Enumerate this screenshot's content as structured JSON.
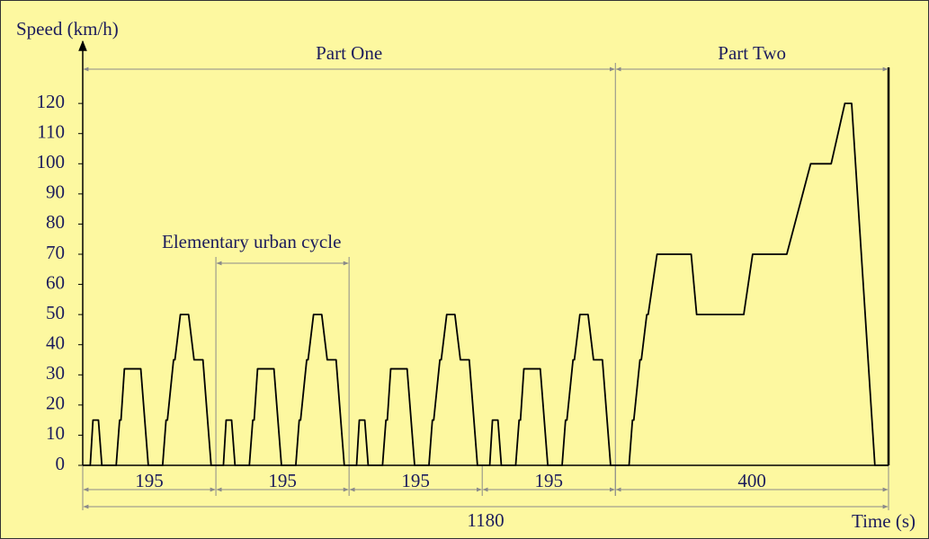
{
  "chart_data": {
    "type": "line",
    "y_label": "Speed (km/h)",
    "x_label": "Time (s)",
    "parts": [
      "Part One",
      "Part Two"
    ],
    "cycle_label": "Elementary urban cycle",
    "spans": [
      195,
      195,
      195,
      195,
      400
    ],
    "total": 1180,
    "color": "#000000",
    "xlim": [
      0,
      1180
    ],
    "ylim": [
      0,
      140
    ],
    "yticks": [
      0,
      10,
      20,
      30,
      40,
      50,
      60,
      70,
      80,
      90,
      100,
      110,
      120
    ],
    "x": [
      0,
      11,
      15,
      23,
      28,
      49,
      54,
      56,
      61,
      85,
      96,
      117,
      122,
      124,
      133,
      135,
      143,
      155,
      163,
      176,
      188,
      195,
      206,
      210,
      218,
      223,
      244,
      249,
      251,
      256,
      280,
      291,
      312,
      317,
      319,
      328,
      330,
      338,
      350,
      358,
      371,
      383,
      390,
      401,
      405,
      413,
      418,
      439,
      444,
      446,
      451,
      475,
      486,
      507,
      512,
      514,
      523,
      525,
      533,
      545,
      553,
      566,
      578,
      585,
      596,
      600,
      608,
      613,
      634,
      639,
      641,
      646,
      670,
      681,
      702,
      707,
      709,
      718,
      720,
      728,
      740,
      748,
      761,
      773,
      780,
      800,
      805,
      807,
      816,
      818,
      826,
      828,
      841,
      891,
      899,
      968,
      981,
      1031,
      1066,
      1096,
      1116,
      1126,
      1160,
      1180
    ],
    "values": [
      0,
      0,
      15,
      15,
      0,
      0,
      15,
      15,
      32,
      32,
      0,
      0,
      15,
      15,
      35,
      35,
      50,
      50,
      35,
      35,
      0,
      0,
      0,
      15,
      15,
      0,
      0,
      15,
      15,
      32,
      32,
      0,
      0,
      15,
      15,
      35,
      35,
      50,
      50,
      35,
      35,
      0,
      0,
      0,
      15,
      15,
      0,
      0,
      15,
      15,
      32,
      32,
      0,
      0,
      15,
      15,
      35,
      35,
      50,
      50,
      35,
      35,
      0,
      0,
      0,
      15,
      15,
      0,
      0,
      15,
      15,
      32,
      32,
      0,
      0,
      15,
      15,
      35,
      35,
      50,
      50,
      35,
      35,
      0,
      0,
      0,
      15,
      15,
      35,
      35,
      50,
      50,
      70,
      70,
      50,
      50,
      70,
      70,
      100,
      100,
      120,
      120,
      0,
      0
    ]
  }
}
